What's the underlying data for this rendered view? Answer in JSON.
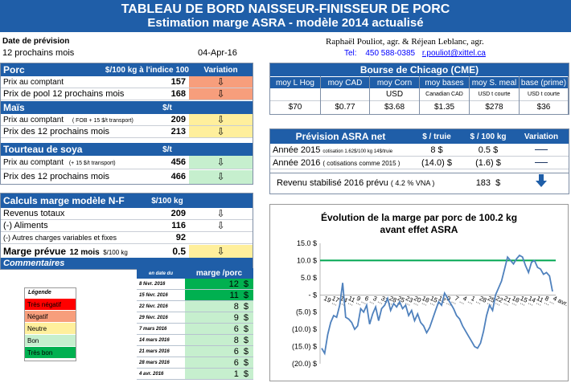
{
  "header": {
    "title": "TABLEAU DE BORD NAISSEUR-FINISSEUR DE PORC",
    "subtitle": "Estimation marge ASRA - modèle 2014 actualisé"
  },
  "info": {
    "date_label": "Date de prévision",
    "period": "12 prochains mois",
    "date": "04-Apr-16",
    "authors": "Raphaël Pouliot, agr.    &    Réjean Leblanc, agr.",
    "tel_label": "Tel:",
    "tel": "450 588-0385",
    "email": "r.pouliot@xittel.ca"
  },
  "porc": {
    "title": "Porc",
    "unit": "$/100 kg à l'indice 100",
    "variation": "Variation",
    "rows": [
      {
        "label": "Prix au comptant",
        "value": "157",
        "arrow": "⇩"
      },
      {
        "label": "Prix de pool 12 prochains mois",
        "value": "168",
        "arrow": "⇩"
      }
    ]
  },
  "mais": {
    "title": "Maïs",
    "unit": "$/t",
    "rows": [
      {
        "label": "Prix au comptant",
        "note": "( FOB + 15 $/t transport)",
        "value": "209",
        "arrow": "⇩"
      },
      {
        "label": "Prix des 12 prochains mois",
        "note": "",
        "value": "213",
        "arrow": "⇩"
      }
    ]
  },
  "tourteau": {
    "title": "Tourteau de soya",
    "unit": "$/t",
    "rows": [
      {
        "label": "Prix au comptant",
        "note": "(+ 15 $/t transport)",
        "value": "456",
        "arrow": "⇩"
      },
      {
        "label": "Prix des 12 prochains mois",
        "note": "",
        "value": "466",
        "arrow": "⇩"
      }
    ]
  },
  "calculs": {
    "title": "Calculs marge  modèle N-F",
    "unit": "$/100 kg",
    "rows": [
      {
        "label": "Revenus totaux",
        "value": "209",
        "arrow": "⇩"
      },
      {
        "label": "(-) Aliments",
        "value": "116",
        "arrow": "⇩"
      },
      {
        "label": "(-) Autres charges variables et fixes",
        "value": "92",
        "arrow": ""
      }
    ],
    "marge_label": "Marge prévue",
    "marge_period": "12 mois",
    "marge_unit": "$/100 kg",
    "marge_value": "0.5",
    "marge_arrow": "⇩",
    "comment_header": "Commentaires",
    "col_date": "en date du",
    "col_marge": "marge /porc"
  },
  "legend": {
    "title": "Légende",
    "items": [
      {
        "label": "Très négatif",
        "color": "#ff0000"
      },
      {
        "label": "Négatif",
        "color": "#f79e7c"
      },
      {
        "label": "Neutre",
        "color": "#ffef9c"
      },
      {
        "label": "Bon",
        "color": "#c6efce"
      },
      {
        "label": "Très bon",
        "color": "#00b050"
      }
    ]
  },
  "history": [
    {
      "date": "8 févr. 2016",
      "value": "12",
      "unit": "$",
      "color": "#00b050"
    },
    {
      "date": "15 févr. 2016",
      "value": "11",
      "unit": "$",
      "color": "#00b050"
    },
    {
      "date": "22 févr. 2016",
      "value": "8",
      "unit": "$",
      "color": "#c6efce"
    },
    {
      "date": "29 févr. 2016",
      "value": "9",
      "unit": "$",
      "color": "#c6efce"
    },
    {
      "date": "7 mars 2016",
      "value": "6",
      "unit": "$",
      "color": "#c6efce"
    },
    {
      "date": "14 mars 2016",
      "value": "8",
      "unit": "$",
      "color": "#c6efce"
    },
    {
      "date": "21 mars 2016",
      "value": "6",
      "unit": "$",
      "color": "#c6efce"
    },
    {
      "date": "28 mars 2016",
      "value": "6",
      "unit": "$",
      "color": "#c6efce"
    },
    {
      "date": "4 avr. 2016",
      "value": "1",
      "unit": "$",
      "color": "#c6efce"
    }
  ],
  "chicago": {
    "title": "Bourse de Chicago (CME)",
    "columns": [
      {
        "head": "moy L Hog",
        "unit": "",
        "value": "$70"
      },
      {
        "head": "moy CAD",
        "unit": "",
        "value": "$0.77"
      },
      {
        "head": "moy Corn",
        "unit": "USD",
        "value": "$3.68"
      },
      {
        "head": "moy bases",
        "unit": "Canadian CAD",
        "value": "$1.35"
      },
      {
        "head": "moy S. meal",
        "unit": "USD t courte",
        "value": "$278"
      },
      {
        "head": "base (prime)",
        "unit": "USD t courte",
        "value": "$36"
      }
    ]
  },
  "asra": {
    "title": "Prévision ASRA net",
    "col1": "$ / truie",
    "col2": "$ / 100 kg",
    "col3": "Variation",
    "rows": [
      {
        "label": "Année 2015",
        "note": "cotisation 1.62$/100 kg 14$/truie",
        "v1": "8",
        "v1u": "$",
        "v2": "0.5",
        "v2u": "$"
      },
      {
        "label": "Année 2016",
        "note": "( cotisations comme 2015 )",
        "v1": "(14.0)",
        "v1u": "$",
        "v2": "(1.6)",
        "v2u": "$"
      }
    ],
    "revenu_label": "Revenu stabilisé 2016 prévu",
    "revenu_note": "( 4.2 % VNA )",
    "revenu_value": "183",
    "revenu_unit": "$"
  },
  "chart_data": {
    "type": "line",
    "title": "Évolution de la marge par porc de 100.2 kg avant effet ASRA",
    "title_line1": "Évolution de la marge par porc de 100.2 kg",
    "title_line2": "avant effet ASRA",
    "ylim": [
      -20,
      15
    ],
    "yticks": [
      15,
      10,
      5,
      0,
      -5,
      -10,
      -15,
      -20
    ],
    "ytick_labels": [
      "15.0 $",
      "10.0 $",
      "5.0 $",
      "- $",
      "(5.0) $",
      "(10.0) $",
      "(15.0) $",
      "(20.0) $"
    ],
    "reference_line": 10,
    "reference_color": "#00a650",
    "line_color": "#4f81bd",
    "xtick_labels": [
      "19 ...",
      "17 ...",
      "14 ...",
      "11 ...",
      "9 ...",
      "6 ...",
      "3 ...",
      "31 ...",
      "28 ...",
      "25 ...",
      "23 ...",
      "20 ...",
      "18 ...",
      "15 ...",
      "12 ...",
      "9 ...",
      "7 ...",
      "4 ...",
      "1 ...",
      "28 ...",
      "25 ...",
      "22 ...",
      "21 ...",
      "18 ...",
      "15 ...",
      "14 ...",
      "11 ...",
      "8 ...",
      "4 avr. 2016"
    ],
    "values": [
      -15.5,
      -17.0,
      -11.5,
      -8.0,
      -6.0,
      -6.5,
      -3.0,
      3.5,
      -6.5,
      -7.0,
      -8.0,
      -10.0,
      -9.0,
      -4.0,
      -5.0,
      -3.0,
      -8.5,
      -5.5,
      -3.5,
      -7.5,
      -4.0,
      -3.0,
      -1.0,
      -4.5,
      -2.5,
      -3.5,
      -2.0,
      -4.0,
      -3.0,
      -6.0,
      -4.5,
      -7.5,
      -5.5,
      -8.0,
      -9.0,
      -11.0,
      -9.5,
      -7.0,
      -4.5,
      -2.0,
      -3.0,
      0.5,
      -1.0,
      -2.5,
      -4.0,
      -6.0,
      -7.0,
      -9.0,
      -10.5,
      -12.0,
      -13.5,
      -15.0,
      -15.5,
      -14.0,
      -10.5,
      -6.0,
      -3.0,
      -4.5,
      0.0,
      2.0,
      4.0,
      7.5,
      11.0,
      10.0,
      9.0,
      10.5,
      11.5,
      11.0,
      8.5,
      6.5,
      9.5,
      10.0,
      8.0,
      7.5,
      6.0,
      6.5,
      5.5,
      1.0
    ]
  }
}
